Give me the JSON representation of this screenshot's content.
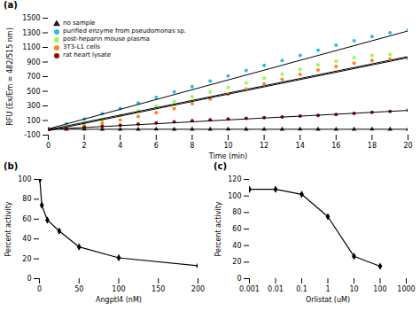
{
  "chart_data": [
    {
      "type": "scatter",
      "title": "(a)",
      "xlabel": "Time (min)",
      "ylabel": "RFU (Ex/Em = 482/515 nm)",
      "x": [
        0,
        1,
        2,
        3,
        4,
        5,
        6,
        7,
        8,
        9,
        10,
        11,
        12,
        13,
        14,
        15,
        16,
        17,
        18,
        19,
        20
      ],
      "series": [
        {
          "name": "no sample",
          "marker": "triangle",
          "values": [
            -20,
            -22,
            -18,
            -20,
            -22,
            -20,
            -18,
            -22,
            -20,
            -20,
            -18,
            -20,
            -22,
            -20,
            -18,
            -20,
            -22,
            -20,
            -18,
            -20,
            -20
          ]
        },
        {
          "type": "line",
          "x": [
            0,
            20
          ],
          "values": [
            -20,
            -20
          ]
        },
        {
          "name": "purified enzyme from pseudomonas sp.",
          "marker": "circle",
          "values": [
            -10,
            55,
            120,
            195,
            265,
            340,
            415,
            490,
            565,
            640,
            710,
            785,
            855,
            920,
            990,
            1060,
            1130,
            1190,
            1250,
            1300,
            1340
          ]
        },
        {
          "type": "line",
          "x": [
            0,
            20
          ],
          "values": [
            -15,
            1325
          ]
        },
        {
          "name": "post-heparin mouse plasma",
          "marker": "square",
          "values": [
            -20,
            20,
            60,
            110,
            170,
            230,
            295,
            360,
            425,
            490,
            550,
            615,
            680,
            735,
            800,
            860,
            910,
            960,
            990,
            1000,
            940
          ]
        },
        {
          "type": "line",
          "x": [
            0,
            20
          ],
          "values": [
            -25,
            975
          ]
        },
        {
          "name": "3T3-L1 cells",
          "marker": "circle",
          "values": [
            -20,
            0,
            30,
            65,
            105,
            155,
            205,
            265,
            330,
            395,
            460,
            530,
            600,
            665,
            730,
            790,
            840,
            885,
            920,
            940,
            950
          ]
        },
        {
          "type": "line",
          "x": [
            0,
            20
          ],
          "values": [
            -40,
            960
          ]
        },
        {
          "name": "rat heart lysate",
          "marker": "circle",
          "values": [
            -20,
            -10,
            5,
            20,
            35,
            52,
            68,
            82,
            97,
            110,
            120,
            130,
            140,
            150,
            160,
            170,
            183,
            198,
            212,
            225,
            240
          ]
        },
        {
          "type": "line",
          "x": [
            0,
            20
          ],
          "values": [
            -22,
            238
          ]
        }
      ],
      "xlim": [
        0,
        20
      ],
      "ylim": [
        -100,
        1500
      ],
      "xticks": [
        0,
        2,
        4,
        6,
        8,
        10,
        12,
        14,
        16,
        18,
        20
      ],
      "yticks": [
        -100,
        100,
        300,
        500,
        700,
        900,
        1100,
        1300,
        1500
      ],
      "grid": false,
      "legend": "upper left"
    },
    {
      "type": "line",
      "title": "(b)",
      "xlabel": "Angptl4 (nM)",
      "ylabel": "Percent activity",
      "x": [
        0.5,
        3,
        10,
        25,
        50,
        100,
        200
      ],
      "values": [
        100,
        74,
        59,
        48,
        32,
        21,
        13
      ],
      "marker": "diamond",
      "xlim": [
        0,
        200
      ],
      "ylim": [
        0,
        100
      ],
      "xticks": [
        0,
        50,
        100,
        150,
        200
      ],
      "yticks": [
        0,
        20,
        40,
        60,
        80,
        100
      ],
      "grid": false
    },
    {
      "type": "line",
      "title": "(c)",
      "xlabel": "Orlistat (uM)",
      "ylabel": "Percent activity",
      "x": [
        0.001,
        0.01,
        0.1,
        1,
        10,
        100
      ],
      "values": [
        108,
        108,
        102,
        75,
        27,
        15
      ],
      "marker": "diamond",
      "log": "x",
      "xlim": [
        0.001,
        1000
      ],
      "ylim": [
        0,
        120
      ],
      "xticks": [
        0.001,
        0.01,
        0.1,
        1,
        10,
        100,
        1000
      ],
      "yticks": [
        0,
        20,
        40,
        60,
        80,
        100,
        120
      ],
      "grid": false
    }
  ]
}
